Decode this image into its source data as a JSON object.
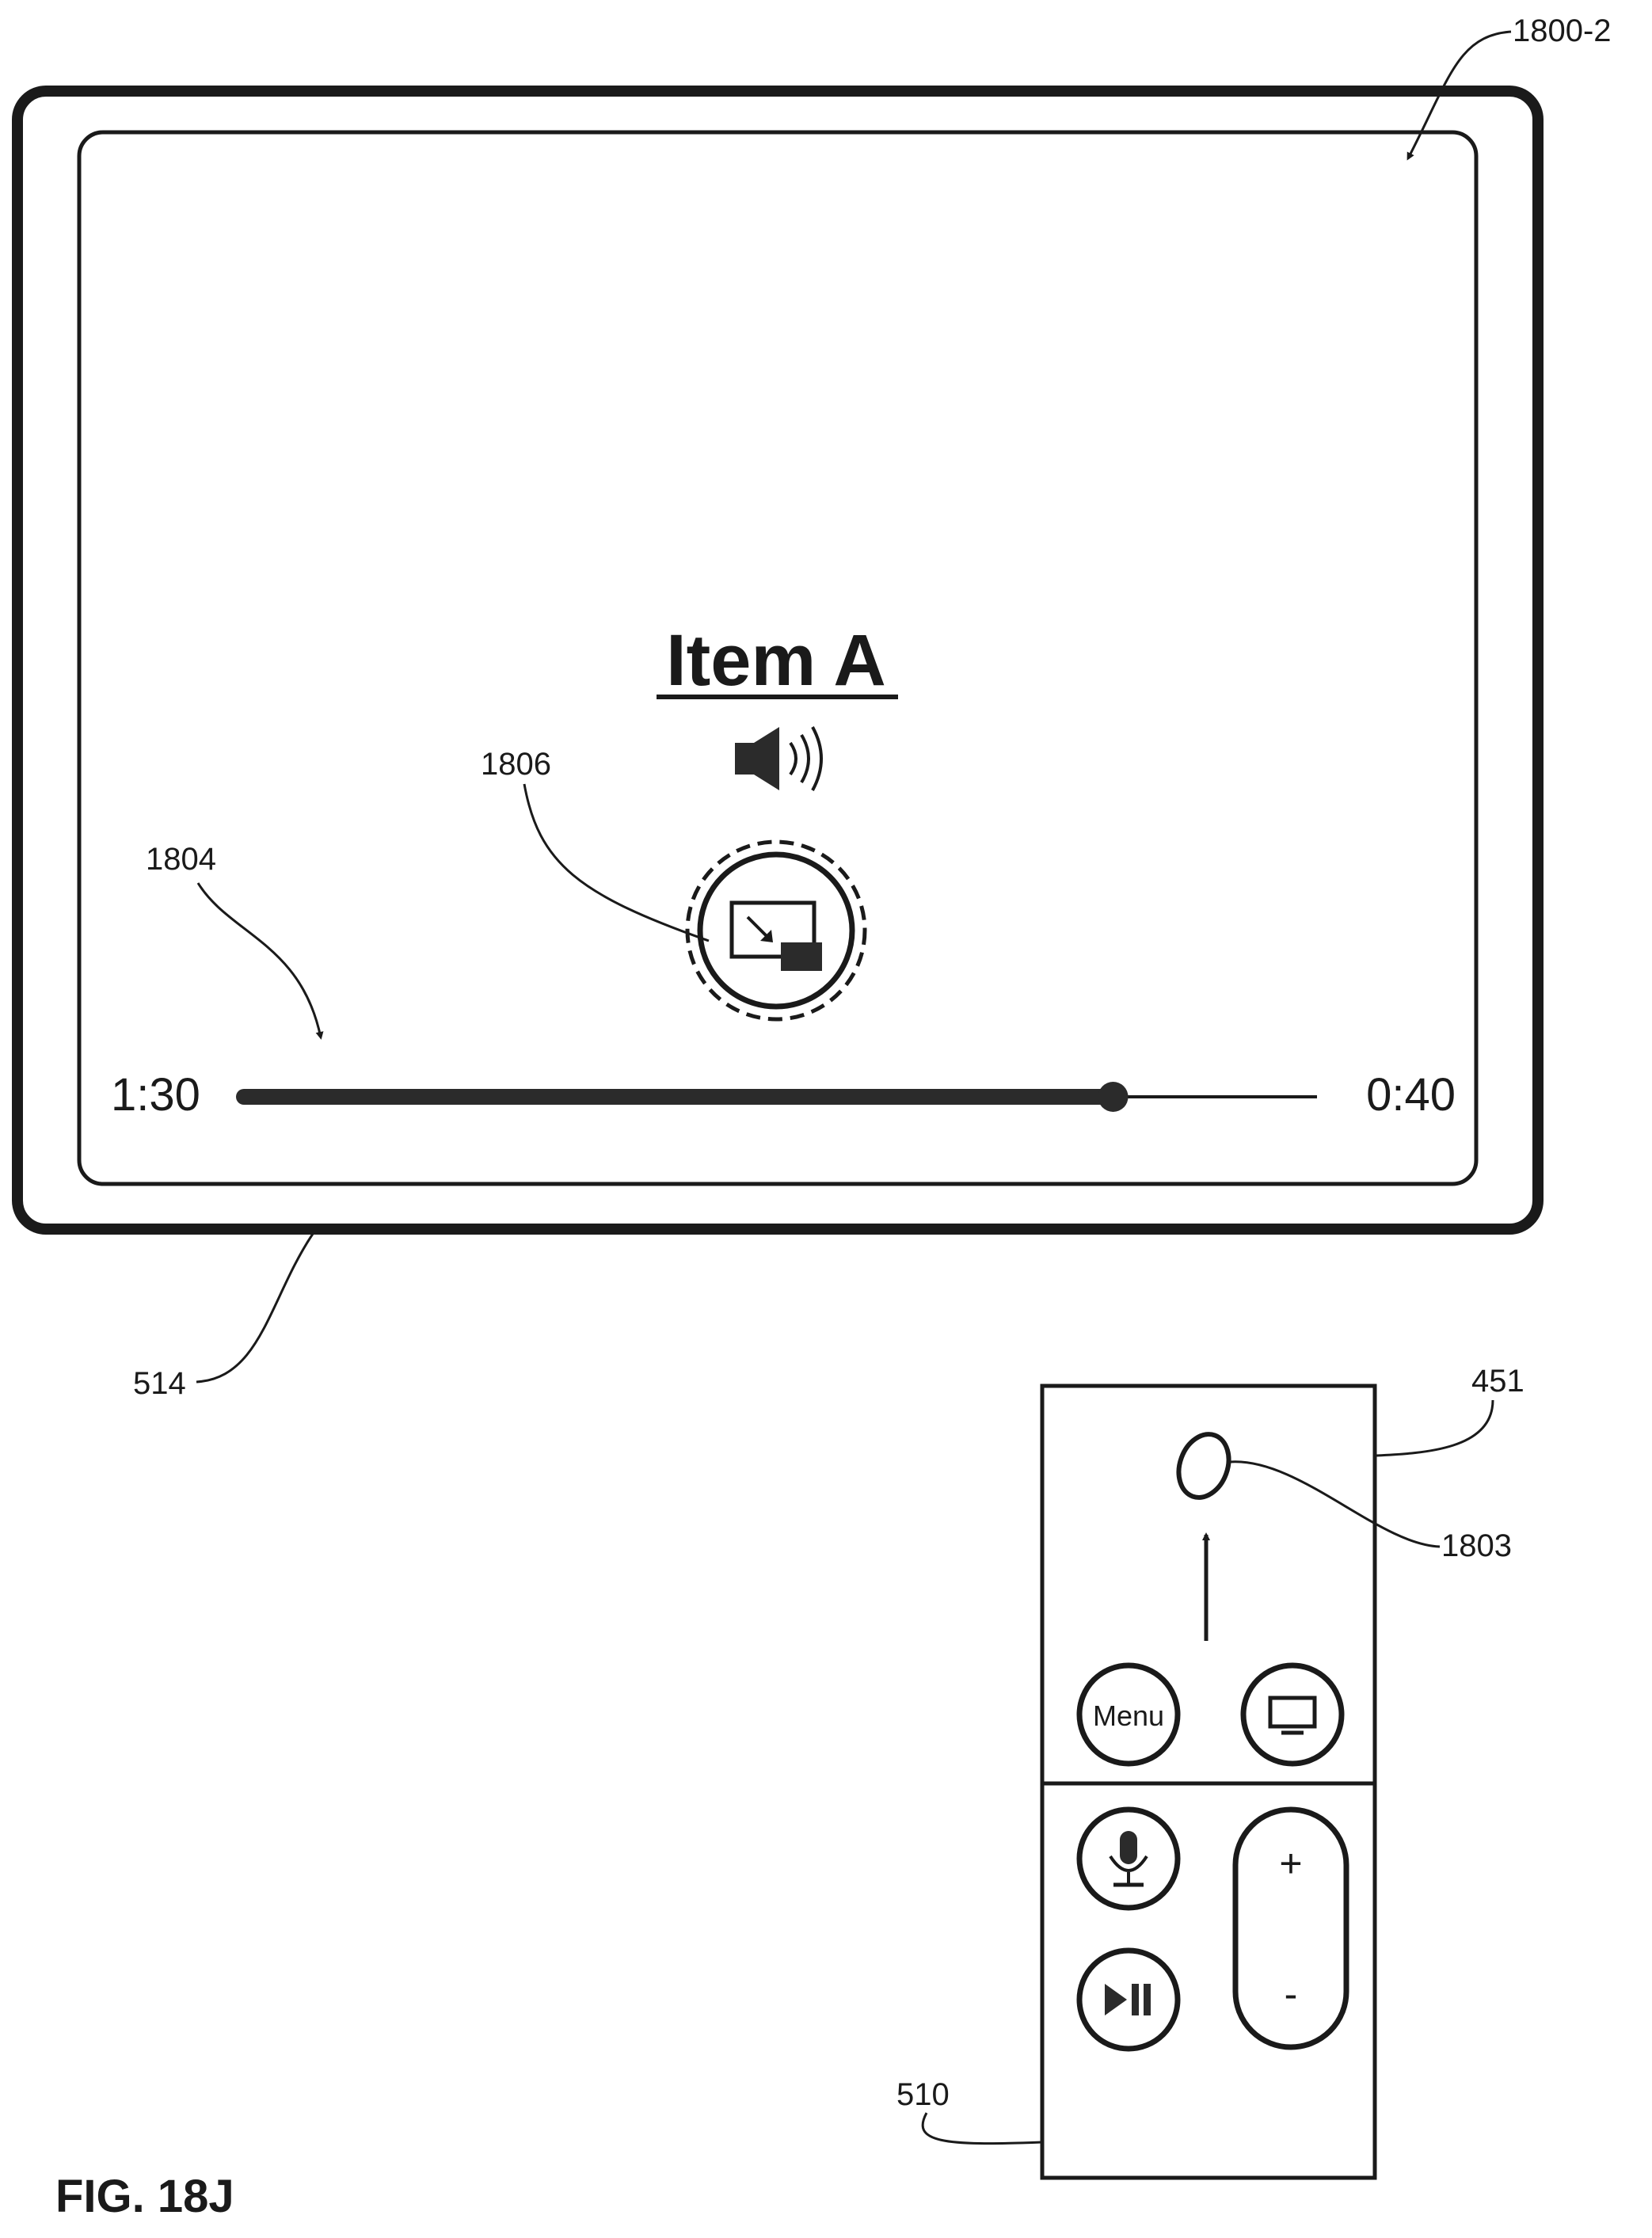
{
  "figure_label": "FIG. 18J",
  "display": {
    "ref_outer": "514",
    "ref_screen": "1800-2",
    "title": "Item A",
    "speaker_icon": "speaker-volume-icon",
    "pip_button": {
      "icon": "picture-in-picture-icon",
      "ref": "1806",
      "state": "focused"
    },
    "scrubber": {
      "ref": "1804",
      "elapsed_label": "1:30",
      "remaining_label": "0:40",
      "progress_fraction": 0.81
    }
  },
  "remote": {
    "ref_remote": "510",
    "ref_touch_surface": "451",
    "touch_contact": {
      "ref": "1803",
      "swipe_direction": "up"
    },
    "buttons": {
      "menu_label": "Menu",
      "tv_icon": "tv-icon",
      "mic_icon": "microphone-icon",
      "play_pause_icon": "play-pause-icon",
      "volume_up_label": "+",
      "volume_down_label": "-"
    }
  },
  "colors": {
    "line": "#1a1a1a",
    "fill_dark": "#2b2b2b",
    "background": "#ffffff"
  }
}
